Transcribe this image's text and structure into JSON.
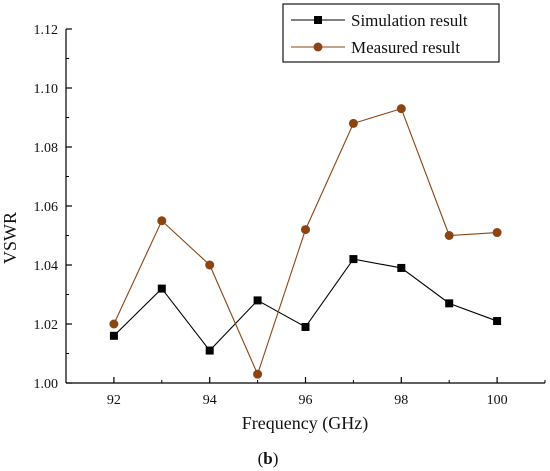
{
  "chart_data": {
    "type": "line",
    "title": "",
    "xlabel": "Frequency (GHz)",
    "ylabel": "VSWR",
    "xlim": [
      91,
      101
    ],
    "ylim": [
      1.0,
      1.12
    ],
    "x_ticks": [
      92,
      94,
      96,
      98,
      100
    ],
    "x_tick_labels": [
      "92",
      "94",
      "96",
      "98",
      "100"
    ],
    "y_ticks": [
      1.0,
      1.02,
      1.04,
      1.06,
      1.08,
      1.1,
      1.12
    ],
    "y_tick_labels": [
      "1.00",
      "1.02",
      "1.04",
      "1.06",
      "1.08",
      "1.10",
      "1.12"
    ],
    "grid": false,
    "legend_position": "top-right",
    "x": [
      92,
      93,
      94,
      95,
      96,
      97,
      98,
      99,
      100
    ],
    "series": [
      {
        "name": "Simulation result",
        "marker": "square",
        "color": "#000000",
        "values": [
          1.016,
          1.032,
          1.011,
          1.028,
          1.019,
          1.042,
          1.039,
          1.027,
          1.021
        ]
      },
      {
        "name": "Measured result",
        "marker": "circle",
        "color": "#8B4513",
        "values": [
          1.02,
          1.055,
          1.04,
          1.003,
          1.052,
          1.088,
          1.093,
          1.05,
          1.051
        ]
      }
    ]
  },
  "caption": {
    "open": "(",
    "letter": "b",
    "close": ")"
  }
}
